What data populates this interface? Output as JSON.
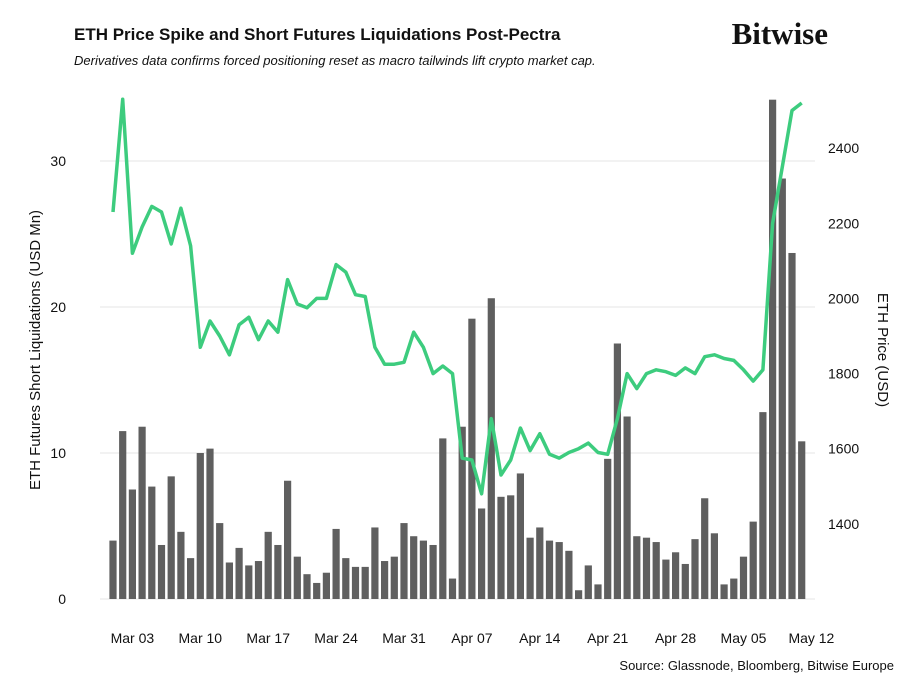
{
  "header": {
    "title": "ETH Price Spike and Short Futures Liquidations Post-Pectra",
    "subtitle": "Derivatives data confirms forced positioning reset as macro tailwinds lift crypto market cap.",
    "logo": "Bitwise"
  },
  "source": "Source: Glassnode, Bloomberg, Bitwise Europe",
  "chart_data": {
    "type": "bar-line",
    "y_label": "ETH Futures Short Liquidations (USD Mn)",
    "y2_label": "ETH Price (USD)",
    "categories": [
      null,
      null,
      "Mar 03",
      null,
      null,
      null,
      null,
      null,
      null,
      "Mar 10",
      null,
      null,
      null,
      null,
      null,
      null,
      "Mar 17",
      null,
      null,
      null,
      null,
      null,
      null,
      "Mar 24",
      null,
      null,
      null,
      null,
      null,
      null,
      "Mar 31",
      null,
      null,
      null,
      null,
      null,
      null,
      "Apr 07",
      null,
      null,
      null,
      null,
      null,
      null,
      "Apr 14",
      null,
      null,
      null,
      null,
      null,
      null,
      "Apr 21",
      null,
      null,
      null,
      null,
      null,
      null,
      "Apr 28",
      null,
      null,
      null,
      null,
      null,
      null,
      "May 05",
      null,
      null,
      null,
      null,
      null,
      null,
      "May 12"
    ],
    "series": [
      {
        "type": "bar",
        "color": "#5f5f5f",
        "values": [
          4.0,
          11.5,
          7.5,
          11.8,
          7.7,
          3.7,
          8.4,
          4.6,
          2.8,
          10.0,
          10.3,
          5.2,
          2.5,
          3.5,
          2.3,
          2.6,
          4.6,
          3.7,
          8.1,
          2.9,
          1.7,
          1.1,
          1.8,
          4.8,
          2.8,
          2.2,
          2.2,
          4.9,
          2.6,
          2.9,
          5.2,
          4.3,
          4.0,
          3.7,
          11.0,
          1.4,
          11.8,
          19.2,
          6.2,
          20.6,
          7.0,
          7.1,
          8.6,
          4.2,
          4.9,
          4.0,
          3.9,
          3.3,
          0.6,
          2.3,
          1.0,
          9.6,
          17.5,
          12.5,
          4.3,
          4.2,
          3.9,
          2.7,
          3.2,
          2.4,
          4.1,
          6.9,
          4.5,
          1.0,
          1.4,
          2.9,
          5.3,
          12.8,
          34.2,
          28.8,
          23.7,
          10.8,
          null
        ]
      },
      {
        "type": "line",
        "axis": "y2",
        "color": "#3dcc7e",
        "values": [
          2230,
          2530,
          2120,
          2190,
          2245,
          2230,
          2145,
          2240,
          2140,
          1870,
          1940,
          1900,
          1850,
          1930,
          1950,
          1890,
          1940,
          1910,
          2050,
          1985,
          1975,
          2000,
          2000,
          2090,
          2070,
          2010,
          2005,
          1870,
          1825,
          1825,
          1830,
          1910,
          1870,
          1800,
          1820,
          1800,
          1575,
          1570,
          1480,
          1680,
          1530,
          1570,
          1655,
          1595,
          1640,
          1585,
          1575,
          1590,
          1600,
          1615,
          1590,
          1585,
          1680,
          1800,
          1760,
          1800,
          1810,
          1805,
          1795,
          1815,
          1800,
          1845,
          1850,
          1840,
          1835,
          1810,
          1780,
          1810,
          2200,
          2350,
          2500,
          2520,
          null
        ]
      }
    ],
    "ylim": [
      0,
      35
    ],
    "yticks": [
      0,
      10,
      20,
      30
    ],
    "y2lim": [
      1200,
      2560
    ],
    "y2ticks": [
      1400,
      1600,
      1800,
      2000,
      2200,
      2400
    ],
    "grid": true
  }
}
